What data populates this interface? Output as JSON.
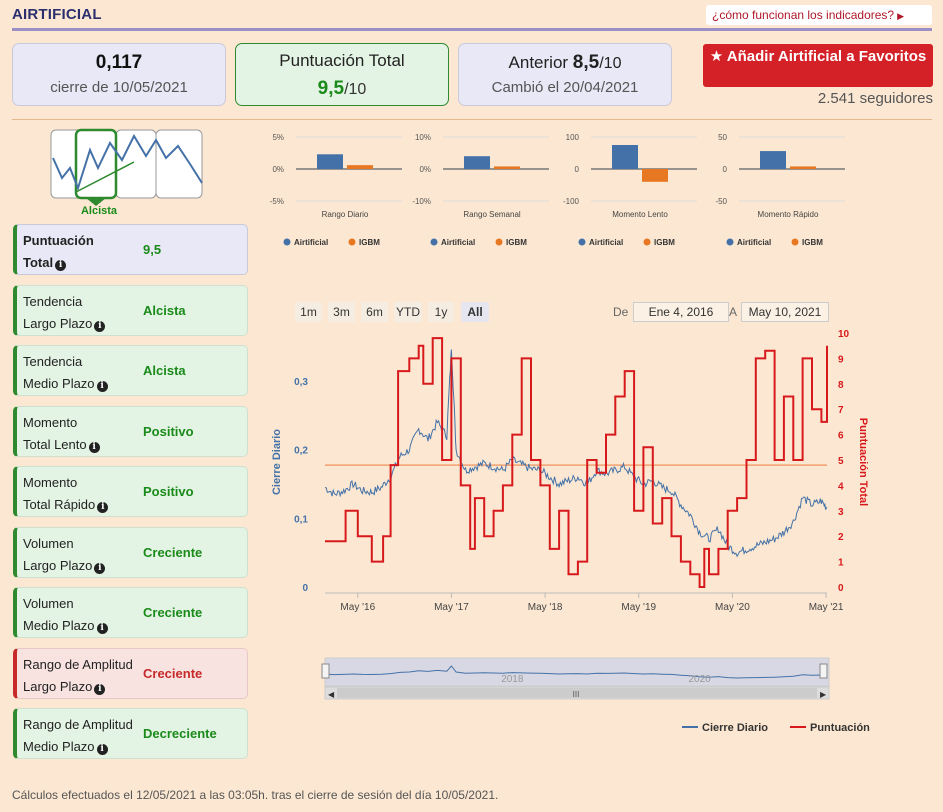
{
  "header": {
    "title": "AIRTIFICIAL",
    "help_link": "¿cómo funcionan los indicadores?"
  },
  "cards": {
    "price": {
      "value": "0,117",
      "caption": "cierre de 10/05/2021"
    },
    "total": {
      "label": "Puntuación Total",
      "value": "9,5",
      "denominator": "/10"
    },
    "previous": {
      "label": "Anterior",
      "value": "8,5",
      "denominator": "/10",
      "caption": "Cambió el 20/04/2021"
    }
  },
  "favorite_button": "Añadir Airtificial a Favoritos",
  "followers": "2.541 seguidores",
  "trend_thumb_label": "Alcista",
  "indicators": [
    {
      "line1": "Puntuación",
      "line2": "Total",
      "value": "9,5",
      "style": "neutral"
    },
    {
      "line1": "Tendencia",
      "line2": "Largo Plazo",
      "value": "Alcista",
      "style": "green"
    },
    {
      "line1": "Tendencia",
      "line2": "Medio Plazo",
      "value": "Alcista",
      "style": "green"
    },
    {
      "line1": "Momento",
      "line2": "Total Lento",
      "value": "Positivo",
      "style": "green"
    },
    {
      "line1": "Momento",
      "line2": "Total Rápido",
      "value": "Positivo",
      "style": "green"
    },
    {
      "line1": "Volumen",
      "line2": "Largo Plazo",
      "value": "Creciente",
      "style": "green"
    },
    {
      "line1": "Volumen",
      "line2": "Medio Plazo",
      "value": "Creciente",
      "style": "green"
    },
    {
      "line1": "Rango de Amplitud",
      "line2": "Largo Plazo",
      "value": "Creciente",
      "style": "red"
    },
    {
      "line1": "Rango de Amplitud",
      "line2": "Medio Plazo",
      "value": "Decreciente",
      "style": "green"
    }
  ],
  "range_buttons": [
    "1m",
    "3m",
    "6m",
    "YTD",
    "1y",
    "All"
  ],
  "range_active": "All",
  "date_range": {
    "from_label": "De",
    "from": "Ene 4, 2016",
    "to_label": "A",
    "to": "May 10, 2021"
  },
  "footer": "Cálculos efectuados el 12/05/2021 a las 03:05h. tras el cierre de sesión del día 10/05/2021.",
  "colors": {
    "airtificial": "#4472a8",
    "igbm": "#e87722",
    "score": "#d7191c",
    "accent_green": "#1a8a1a"
  },
  "chart_data": [
    {
      "type": "bar",
      "xlabel": "Rango Diario",
      "categories": [
        "Airtificial",
        "IGBM"
      ],
      "values": [
        2.3,
        0.6
      ],
      "yticks": [
        "5%",
        "0%",
        "-5%"
      ],
      "ylim": [
        -5,
        5
      ],
      "legend": [
        "Airtificial",
        "IGBM"
      ]
    },
    {
      "type": "bar",
      "xlabel": "Rango Semanal",
      "categories": [
        "Airtificial",
        "IGBM"
      ],
      "values": [
        4.0,
        0.8
      ],
      "yticks": [
        "10%",
        "0%",
        "-10%"
      ],
      "ylim": [
        -10,
        10
      ],
      "legend": [
        "Airtificial",
        "IGBM"
      ]
    },
    {
      "type": "bar",
      "xlabel": "Momento Lento",
      "categories": [
        "Airtificial",
        "IGBM"
      ],
      "values": [
        75,
        -40
      ],
      "yticks": [
        "100",
        "0",
        "-100"
      ],
      "ylim": [
        -100,
        100
      ],
      "legend": [
        "Airtificial",
        "IGBM"
      ]
    },
    {
      "type": "bar",
      "xlabel": "Momento Rápido",
      "categories": [
        "Airtificial",
        "IGBM"
      ],
      "values": [
        28,
        4
      ],
      "yticks": [
        "50",
        "0",
        "-50"
      ],
      "ylim": [
        -50,
        50
      ],
      "legend": [
        "Airtificial",
        "IGBM"
      ]
    },
    {
      "type": "line",
      "ylabel_left": "Cierre Diario",
      "ylabel_right": "Puntuación Total",
      "ylim_left": [
        0,
        0.37
      ],
      "ylim_right": [
        0,
        10
      ],
      "yticks_left": [
        "0",
        "0,1",
        "0,2",
        "0,3"
      ],
      "yticks_right": [
        "0",
        "1",
        "2",
        "3",
        "4",
        "5",
        "6",
        "7",
        "8",
        "9",
        "10"
      ],
      "x_ticks": [
        "May '16",
        "May '17",
        "May '18",
        "May '19",
        "May '20",
        "May '21"
      ],
      "navigator_labels": [
        "2018",
        "2020"
      ],
      "threshold": 4.8,
      "series": [
        {
          "name": "Cierre Diario",
          "axis": "left",
          "x": [
            2016.0,
            2016.1,
            2016.2,
            2016.3,
            2016.4,
            2016.5,
            2016.6,
            2016.7,
            2016.8,
            2016.9,
            2017.0,
            2017.1,
            2017.2,
            2017.3,
            2017.35,
            2017.4,
            2017.5,
            2017.6,
            2017.7,
            2017.8,
            2017.9,
            2018.0,
            2018.1,
            2018.2,
            2018.3,
            2018.4,
            2018.5,
            2018.6,
            2018.7,
            2018.8,
            2018.9,
            2019.0,
            2019.1,
            2019.2,
            2019.3,
            2019.4,
            2019.5,
            2019.6,
            2019.7,
            2019.8,
            2019.9,
            2020.0,
            2020.1,
            2020.2,
            2020.3,
            2020.4,
            2020.5,
            2020.6,
            2020.7,
            2020.8,
            2020.9,
            2021.0,
            2021.1,
            2021.2,
            2021.3,
            2021.36
          ],
          "values": [
            0.145,
            0.135,
            0.14,
            0.15,
            0.14,
            0.138,
            0.145,
            0.16,
            0.19,
            0.2,
            0.23,
            0.215,
            0.24,
            0.22,
            0.35,
            0.2,
            0.17,
            0.175,
            0.18,
            0.175,
            0.17,
            0.185,
            0.178,
            0.172,
            0.17,
            0.16,
            0.15,
            0.155,
            0.16,
            0.15,
            0.17,
            0.165,
            0.17,
            0.175,
            0.16,
            0.15,
            0.155,
            0.145,
            0.14,
            0.12,
            0.105,
            0.08,
            0.07,
            0.085,
            0.06,
            0.05,
            0.055,
            0.06,
            0.065,
            0.07,
            0.08,
            0.095,
            0.13,
            0.12,
            0.125,
            0.115
          ]
        },
        {
          "name": "Puntuación",
          "axis": "right",
          "x": [
            2016.0,
            2016.15,
            2016.22,
            2016.35,
            2016.5,
            2016.62,
            2016.7,
            2016.78,
            2016.9,
            2017.0,
            2017.05,
            2017.15,
            2017.25,
            2017.35,
            2017.45,
            2017.55,
            2017.6,
            2017.7,
            2017.8,
            2017.9,
            2018.0,
            2018.1,
            2018.2,
            2018.3,
            2018.4,
            2018.5,
            2018.6,
            2018.7,
            2018.8,
            2018.9,
            2019.0,
            2019.1,
            2019.2,
            2019.3,
            2019.4,
            2019.5,
            2019.6,
            2019.7,
            2019.8,
            2019.9,
            2020.0,
            2020.05,
            2020.1,
            2020.2,
            2020.3,
            2020.4,
            2020.5,
            2020.6,
            2020.7,
            2020.8,
            2020.9,
            2021.0,
            2021.1,
            2021.2,
            2021.3,
            2021.36
          ],
          "values": [
            1.8,
            1.8,
            3.0,
            2.0,
            1.0,
            2.0,
            4.8,
            8.5,
            9.0,
            9.5,
            8.0,
            9.8,
            5.0,
            9.0,
            4.0,
            1.5,
            3.5,
            2.0,
            3.0,
            4.0,
            6.0,
            9.0,
            5.0,
            4.0,
            1.5,
            3.0,
            0.5,
            1.0,
            5.0,
            4.5,
            6.0,
            7.5,
            8.5,
            3.0,
            5.5,
            2.5,
            3.5,
            2.0,
            1.0,
            0.5,
            0.0,
            1.5,
            0.5,
            1.5,
            3.0,
            3.5,
            5.0,
            9.0,
            9.3,
            5.0,
            7.5,
            5.0,
            9.0,
            7.0,
            6.5,
            9.5
          ]
        }
      ]
    }
  ],
  "legend": {
    "series1": "Cierre Diario",
    "series2": "Puntuación"
  }
}
